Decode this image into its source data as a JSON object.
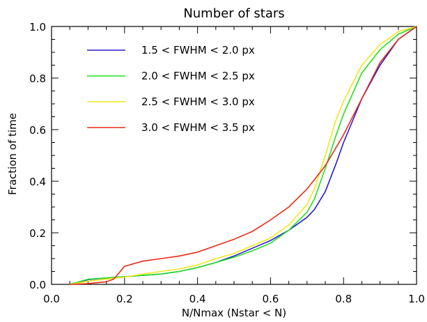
{
  "chart_data": {
    "type": "line",
    "title": "Number of stars",
    "xlabel": "N/Nmax (Nstar < N)",
    "ylabel": "Fraction of time",
    "xlim": [
      0.0,
      1.0
    ],
    "ylim": [
      0.0,
      1.0
    ],
    "xticks": [
      "0.0",
      "0.2",
      "0.4",
      "0.6",
      "0.8",
      "1.0"
    ],
    "yticks": [
      "0.0",
      "0.2",
      "0.4",
      "0.6",
      "0.8",
      "1.0"
    ],
    "grid": false,
    "legend_position": "top-left",
    "series": [
      {
        "name": "1.5 < FWHM < 2.0 px",
        "color": "#2a1ad6",
        "x": [
          0.05,
          0.1,
          0.15,
          0.2,
          0.25,
          0.3,
          0.35,
          0.4,
          0.45,
          0.5,
          0.55,
          0.6,
          0.65,
          0.7,
          0.72,
          0.75,
          0.78,
          0.8,
          0.85,
          0.9,
          0.95,
          1.0
        ],
        "y": [
          0.0,
          0.018,
          0.025,
          0.03,
          0.035,
          0.04,
          0.05,
          0.065,
          0.085,
          0.11,
          0.14,
          0.17,
          0.21,
          0.26,
          0.29,
          0.36,
          0.47,
          0.55,
          0.72,
          0.85,
          0.95,
          1.0
        ]
      },
      {
        "name": "2.0 < FWHM < 2.5 px",
        "color": "#22e022",
        "x": [
          0.05,
          0.1,
          0.15,
          0.2,
          0.25,
          0.3,
          0.35,
          0.4,
          0.45,
          0.5,
          0.55,
          0.6,
          0.65,
          0.7,
          0.72,
          0.75,
          0.78,
          0.8,
          0.85,
          0.9,
          0.95,
          1.0
        ],
        "y": [
          0.0,
          0.02,
          0.025,
          0.03,
          0.035,
          0.04,
          0.05,
          0.065,
          0.085,
          0.105,
          0.13,
          0.16,
          0.21,
          0.28,
          0.33,
          0.45,
          0.58,
          0.66,
          0.82,
          0.91,
          0.97,
          1.0
        ]
      },
      {
        "name": "2.5 < FWHM < 3.0 px",
        "color": "#f0e61e",
        "x": [
          0.05,
          0.1,
          0.15,
          0.2,
          0.25,
          0.3,
          0.35,
          0.4,
          0.45,
          0.5,
          0.55,
          0.6,
          0.65,
          0.7,
          0.72,
          0.75,
          0.78,
          0.8,
          0.85,
          0.9,
          0.95,
          1.0
        ],
        "y": [
          0.0,
          0.012,
          0.02,
          0.028,
          0.04,
          0.05,
          0.06,
          0.075,
          0.1,
          0.12,
          0.15,
          0.18,
          0.23,
          0.31,
          0.37,
          0.5,
          0.64,
          0.71,
          0.85,
          0.93,
          0.98,
          1.0
        ]
      },
      {
        "name": "3.0 < FWHM < 3.5 px",
        "color": "#e82a18",
        "x": [
          0.05,
          0.1,
          0.15,
          0.17,
          0.2,
          0.25,
          0.3,
          0.35,
          0.4,
          0.45,
          0.5,
          0.55,
          0.6,
          0.65,
          0.7,
          0.75,
          0.8,
          0.85,
          0.9,
          0.95,
          1.0
        ],
        "y": [
          0.0,
          0.003,
          0.01,
          0.02,
          0.07,
          0.09,
          0.1,
          0.11,
          0.125,
          0.15,
          0.175,
          0.205,
          0.25,
          0.3,
          0.37,
          0.46,
          0.58,
          0.72,
          0.86,
          0.95,
          1.0
        ]
      }
    ]
  }
}
